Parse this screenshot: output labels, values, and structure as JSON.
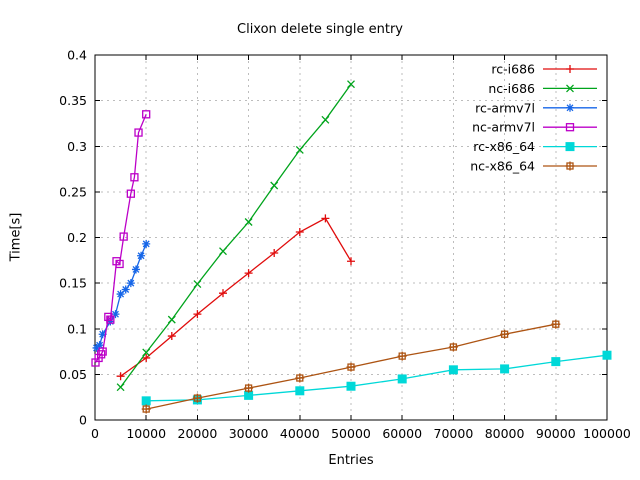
{
  "chart_data": {
    "type": "line",
    "title": "Clixon delete single entry",
    "xlabel": "Entries",
    "ylabel": "Time[s]",
    "grid": "dashed",
    "grid_color": "#bdbdbd",
    "axis_color": "#000000",
    "background_color": "#ffffff",
    "legend_position": "top-right-inside",
    "x_axis": {
      "min": 0,
      "max": 100000,
      "ticks": [
        {
          "value": 0,
          "label": "0"
        },
        {
          "value": 10000,
          "label": "10000"
        },
        {
          "value": 20000,
          "label": "20000"
        },
        {
          "value": 30000,
          "label": "30000"
        },
        {
          "value": 40000,
          "label": "40000"
        },
        {
          "value": 50000,
          "label": "50000"
        },
        {
          "value": 60000,
          "label": "60000"
        },
        {
          "value": 70000,
          "label": "70000"
        },
        {
          "value": 80000,
          "label": "80000"
        },
        {
          "value": 90000,
          "label": "90000"
        },
        {
          "value": 100000,
          "label": "100000"
        }
      ]
    },
    "y_axis": {
      "min": 0,
      "max": 0.4,
      "ticks": [
        {
          "value": 0,
          "label": "0"
        },
        {
          "value": 0.05,
          "label": "0.05"
        },
        {
          "value": 0.1,
          "label": "0.1"
        },
        {
          "value": 0.15,
          "label": "0.15"
        },
        {
          "value": 0.2,
          "label": "0.2"
        },
        {
          "value": 0.25,
          "label": "0.25"
        },
        {
          "value": 0.3,
          "label": "0.3"
        },
        {
          "value": 0.35,
          "label": "0.35"
        },
        {
          "value": 0.4,
          "label": "0.4"
        }
      ]
    },
    "series": [
      {
        "name": "rc-i686",
        "color": "#e00c0c",
        "marker": "plus",
        "points": [
          [
            5000,
            0.048
          ],
          [
            10000,
            0.068
          ],
          [
            15000,
            0.092
          ],
          [
            20000,
            0.116
          ],
          [
            25000,
            0.139
          ],
          [
            30000,
            0.161
          ],
          [
            35000,
            0.183
          ],
          [
            40000,
            0.206
          ],
          [
            45000,
            0.221
          ],
          [
            50000,
            0.174
          ]
        ]
      },
      {
        "name": "nc-i686",
        "color": "#00a41c",
        "marker": "cross",
        "points": [
          [
            5000,
            0.036
          ],
          [
            10000,
            0.074
          ],
          [
            15000,
            0.11
          ],
          [
            20000,
            0.149
          ],
          [
            25000,
            0.185
          ],
          [
            30000,
            0.217
          ],
          [
            35000,
            0.257
          ],
          [
            40000,
            0.296
          ],
          [
            45000,
            0.329
          ],
          [
            50000,
            0.368
          ]
        ]
      },
      {
        "name": "rc-armv7l",
        "color": "#1666e8",
        "marker": "asterisk",
        "points": [
          [
            300,
            0.079
          ],
          [
            900,
            0.082
          ],
          [
            1500,
            0.094
          ],
          [
            3000,
            0.108
          ],
          [
            4000,
            0.116
          ],
          [
            5000,
            0.138
          ],
          [
            6000,
            0.143
          ],
          [
            7000,
            0.15
          ],
          [
            8000,
            0.165
          ],
          [
            9000,
            0.18
          ],
          [
            10000,
            0.193
          ]
        ]
      },
      {
        "name": "nc-armv7l",
        "color": "#bc00c8",
        "marker": "open-square",
        "points": [
          [
            100,
            0.063
          ],
          [
            700,
            0.068
          ],
          [
            1200,
            0.072
          ],
          [
            1500,
            0.075
          ],
          [
            2600,
            0.113
          ],
          [
            3000,
            0.11
          ],
          [
            4200,
            0.174
          ],
          [
            4800,
            0.171
          ],
          [
            5600,
            0.201
          ],
          [
            7000,
            0.248
          ],
          [
            7700,
            0.266
          ],
          [
            8500,
            0.315
          ],
          [
            10000,
            0.335
          ]
        ]
      },
      {
        "name": "rc-x86_64",
        "color": "#00d8d8",
        "marker": "filled-square",
        "points": [
          [
            10000,
            0.021
          ],
          [
            20000,
            0.022
          ],
          [
            30000,
            0.027
          ],
          [
            40000,
            0.032
          ],
          [
            50000,
            0.037
          ],
          [
            60000,
            0.045
          ],
          [
            70000,
            0.055
          ],
          [
            80000,
            0.056
          ],
          [
            90000,
            0.064
          ],
          [
            100000,
            0.071
          ]
        ]
      },
      {
        "name": "nc-x86_64",
        "color": "#ad5413",
        "marker": "square-plus",
        "points": [
          [
            10000,
            0.012
          ],
          [
            20000,
            0.024
          ],
          [
            30000,
            0.035
          ],
          [
            40000,
            0.046
          ],
          [
            50000,
            0.058
          ],
          [
            60000,
            0.07
          ],
          [
            70000,
            0.08
          ],
          [
            80000,
            0.094
          ],
          [
            90000,
            0.105
          ]
        ]
      }
    ]
  }
}
